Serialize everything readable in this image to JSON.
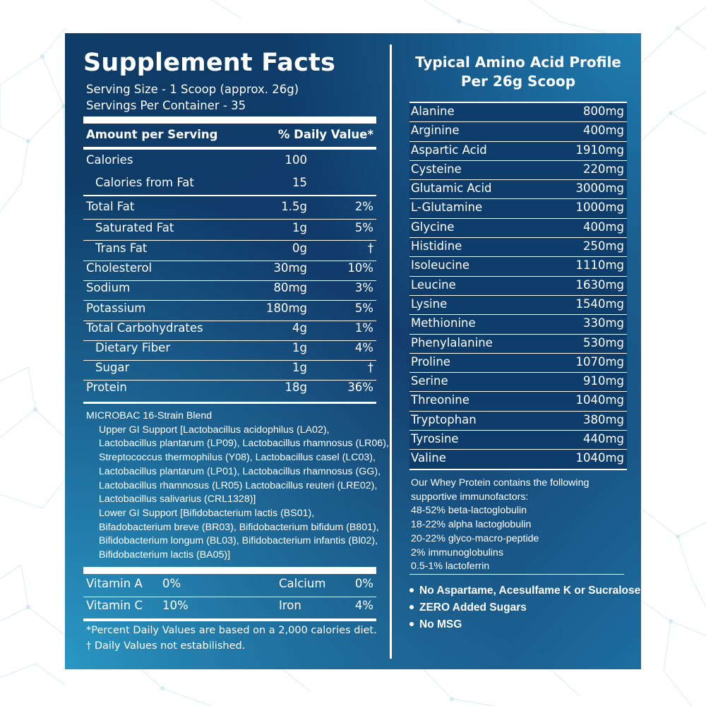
{
  "left": {
    "title": "Supplement Facts",
    "serving_size": "Serving  Size - 1 Scoop (approx. 26g)",
    "servings_per_container": "Servings Per Container - 35",
    "header_amount": "Amount per Serving",
    "header_dv": "% Daily Value*",
    "nutrients": [
      {
        "name": "Calories",
        "amount": "100",
        "dv": ""
      },
      {
        "name": "Calories from Fat",
        "amount": "15",
        "dv": ""
      },
      {
        "name": "Total Fat",
        "amount": "1.5g",
        "dv": "2%"
      },
      {
        "name": "Saturated Fat",
        "amount": "1g",
        "dv": "5%"
      },
      {
        "name": "Trans Fat",
        "amount": "0g",
        "dv": "†"
      },
      {
        "name": "Cholesterol",
        "amount": "30mg",
        "dv": "10%"
      },
      {
        "name": "Sodium",
        "amount": "80mg",
        "dv": "3%"
      },
      {
        "name": "Potassium",
        "amount": "180mg",
        "dv": "5%"
      },
      {
        "name": "Total Carbohydrates",
        "amount": "4g",
        "dv": "1%"
      },
      {
        "name": "Dietary Fiber",
        "amount": "1g",
        "dv": "4%"
      },
      {
        "name": "Sugar",
        "amount": "1g",
        "dv": "†"
      },
      {
        "name": "Protein",
        "amount": "18g",
        "dv": "36%"
      }
    ],
    "blend_lines": [
      "MICROBAC 16-Strain Blend",
      "Upper GI Support [Lactobacillus acidophilus (LA02),",
      "Lactobacillus plantarum (LP09), Lactobacillus rhamnosus (LR06),",
      "Streptococcus thermophilus (Y08), Lactobacillus casel (LC03),",
      "Lactobacillus plantarum (LP01), Lactobacillus rhamnosus (GG),",
      "Lactobacillus rhamnosus (LR05) Lactobacillus reuteri (LRE02),",
      "Lactobacillus salivarius (CRL1328)]",
      "Lower GI Support [Bifidobacterium lactis (BS01),",
      "Bifadobacterium breve (BR03), Bifidobacterium bifidum (B801),",
      "Bifidobacterium longum (BL03), Bifidobacterium infantis (Bl02),",
      "Bifidobacterium lactis (BA05)]"
    ],
    "vitamins": [
      {
        "name1": "Vitamin A",
        "val1": "0%",
        "name2": "Calcium",
        "val2": "0%"
      },
      {
        "name1": "Vitamin C",
        "val1": "10%",
        "name2": "Iron",
        "val2": "4%"
      }
    ],
    "footnote1": "*Percent Daily Values are based on a 2,000 calories diet.",
    "footnote2": "† Daily Values not estabilished."
  },
  "right": {
    "title_line1": "Typical Amino Acid Profile",
    "title_line2": "Per 26g Scoop",
    "amino_acids": [
      {
        "name": "Alanine",
        "value": "800mg"
      },
      {
        "name": "Arginine",
        "value": "400mg"
      },
      {
        "name": "Aspartic Acid",
        "value": "1910mg"
      },
      {
        "name": "Cysteine",
        "value": "220mg"
      },
      {
        "name": "Glutamic Acid",
        "value": "3000mg"
      },
      {
        "name": "L-Glutamine",
        "value": "1000mg"
      },
      {
        "name": "Glycine",
        "value": "400mg"
      },
      {
        "name": "Histidine",
        "value": "250mg"
      },
      {
        "name": "Isoleucine",
        "value": "1110mg"
      },
      {
        "name": "Leucine",
        "value": "1630mg"
      },
      {
        "name": "Lysine",
        "value": "1540mg"
      },
      {
        "name": "Methionine",
        "value": "330mg"
      },
      {
        "name": "Phenylalanine",
        "value": "530mg"
      },
      {
        "name": "Proline",
        "value": "1070mg"
      },
      {
        "name": "Serine",
        "value": "910mg"
      },
      {
        "name": "Threonine",
        "value": "1040mg"
      },
      {
        "name": "Tryptophan",
        "value": "380mg"
      },
      {
        "name": "Tyrosine",
        "value": "440mg"
      },
      {
        "name": "Valine",
        "value": "1040mg"
      }
    ],
    "whey_lines": [
      "Our Whey Protein contains the following",
      "supportive immunofactors:",
      "48-52% beta-lactoglobulin",
      "18-22% alpha lactoglobulin",
      "20-22% glyco-macro-peptide",
      "2% immunoglobulins",
      "0.5-1% lactoferrin"
    ],
    "bullets": [
      "No Aspartame, Acesulfame K or Sucralose",
      "ZERO Added Sugars",
      "No MSG"
    ]
  },
  "colors": {
    "panel_dark": "#0f3d6b",
    "panel_light": "#2a97c4",
    "text": "#ffffff",
    "network_lines": "#cfe6ef"
  }
}
